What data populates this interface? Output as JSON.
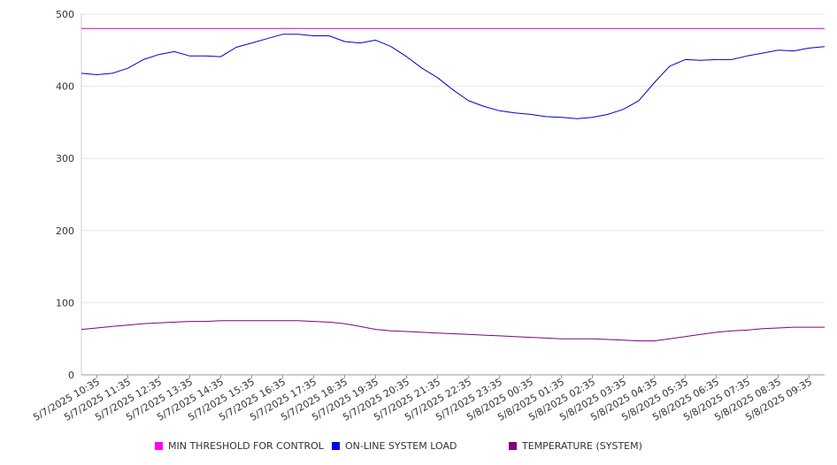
{
  "chart_data": {
    "type": "line",
    "title": "",
    "xlabel": "",
    "ylabel": "",
    "ylim": [
      0,
      500
    ],
    "y_ticks": [
      0,
      100,
      200,
      300,
      400,
      500
    ],
    "grid": "horizontal",
    "legend_position": "bottom",
    "x_tick_labels": [
      "5/7/2025 10:35",
      "5/7/2025 11:35",
      "5/7/2025 12:35",
      "5/7/2025 13:35",
      "5/7/2025 14:35",
      "5/7/2025 15:35",
      "5/7/2025 16:35",
      "5/7/2025 17:35",
      "5/7/2025 18:35",
      "5/7/2025 19:35",
      "5/7/2025 20:35",
      "5/7/2025 21:35",
      "5/7/2025 22:35",
      "5/7/2025 23:35",
      "5/8/2025 00:35",
      "5/8/2025 01:35",
      "5/8/2025 02:35",
      "5/8/2025 03:35",
      "5/8/2025 04:35",
      "5/8/2025 05:35",
      "5/8/2025 06:35",
      "5/8/2025 07:35",
      "5/8/2025 08:35",
      "5/8/2025 09:35"
    ],
    "x_hours": [
      0,
      0.5,
      1,
      1.5,
      2,
      2.5,
      3,
      3.5,
      4,
      4.5,
      5,
      5.5,
      6,
      6.5,
      7,
      7.5,
      8,
      8.5,
      9,
      9.5,
      10,
      10.5,
      11,
      11.5,
      12,
      12.5,
      13,
      13.5,
      14,
      14.5,
      15,
      15.5,
      16,
      16.5,
      17,
      17.5,
      18,
      18.5,
      19,
      19.5,
      20,
      20.5,
      21,
      21.5,
      22,
      22.5,
      23,
      23.5,
      24
    ],
    "series": [
      {
        "name": "MIN THRESHOLD FOR CONTROL",
        "color": "#cc00cc",
        "values": [
          480,
          480,
          480,
          480,
          480,
          480,
          480,
          480,
          480,
          480,
          480,
          480,
          480,
          480,
          480,
          480,
          480,
          480,
          480,
          480,
          480,
          480,
          480,
          480,
          480,
          480,
          480,
          480,
          480,
          480,
          480,
          480,
          480,
          480,
          480,
          480,
          480,
          480,
          480,
          480,
          480,
          480,
          480,
          480,
          480,
          480,
          480,
          480,
          480
        ]
      },
      {
        "name": "ON-LINE SYSTEM LOAD",
        "color": "#0000cc",
        "values": [
          418,
          416,
          418,
          425,
          437,
          444,
          448,
          442,
          442,
          441,
          454,
          460,
          466,
          472,
          472,
          470,
          470,
          462,
          460,
          464,
          455,
          441,
          425,
          412,
          395,
          380,
          372,
          366,
          363,
          361,
          358,
          357,
          355,
          357,
          361,
          368,
          380,
          405,
          428,
          437,
          436,
          437,
          437,
          442,
          446,
          450,
          449,
          453,
          455
        ]
      },
      {
        "name": "TEMPERATURE (SYSTEM)",
        "color": "#800080",
        "values": [
          63,
          65,
          67,
          69,
          71,
          72,
          73,
          74,
          74,
          75,
          75,
          75,
          75,
          75,
          75,
          74,
          73,
          71,
          67,
          63,
          61,
          60,
          59,
          58,
          57,
          56,
          55,
          54,
          53,
          52,
          51,
          50,
          50,
          50,
          49,
          48,
          47,
          47,
          50,
          53,
          56,
          59,
          61,
          62,
          64,
          65,
          66,
          66,
          66
        ]
      }
    ]
  },
  "legend": {
    "items": [
      {
        "label": "MIN THRESHOLD FOR CONTROL",
        "color": "#ff00ff"
      },
      {
        "label": "ON-LINE SYSTEM LOAD",
        "color": "#0000ee"
      },
      {
        "label": "TEMPERATURE (SYSTEM)",
        "color": "#800080"
      }
    ]
  }
}
